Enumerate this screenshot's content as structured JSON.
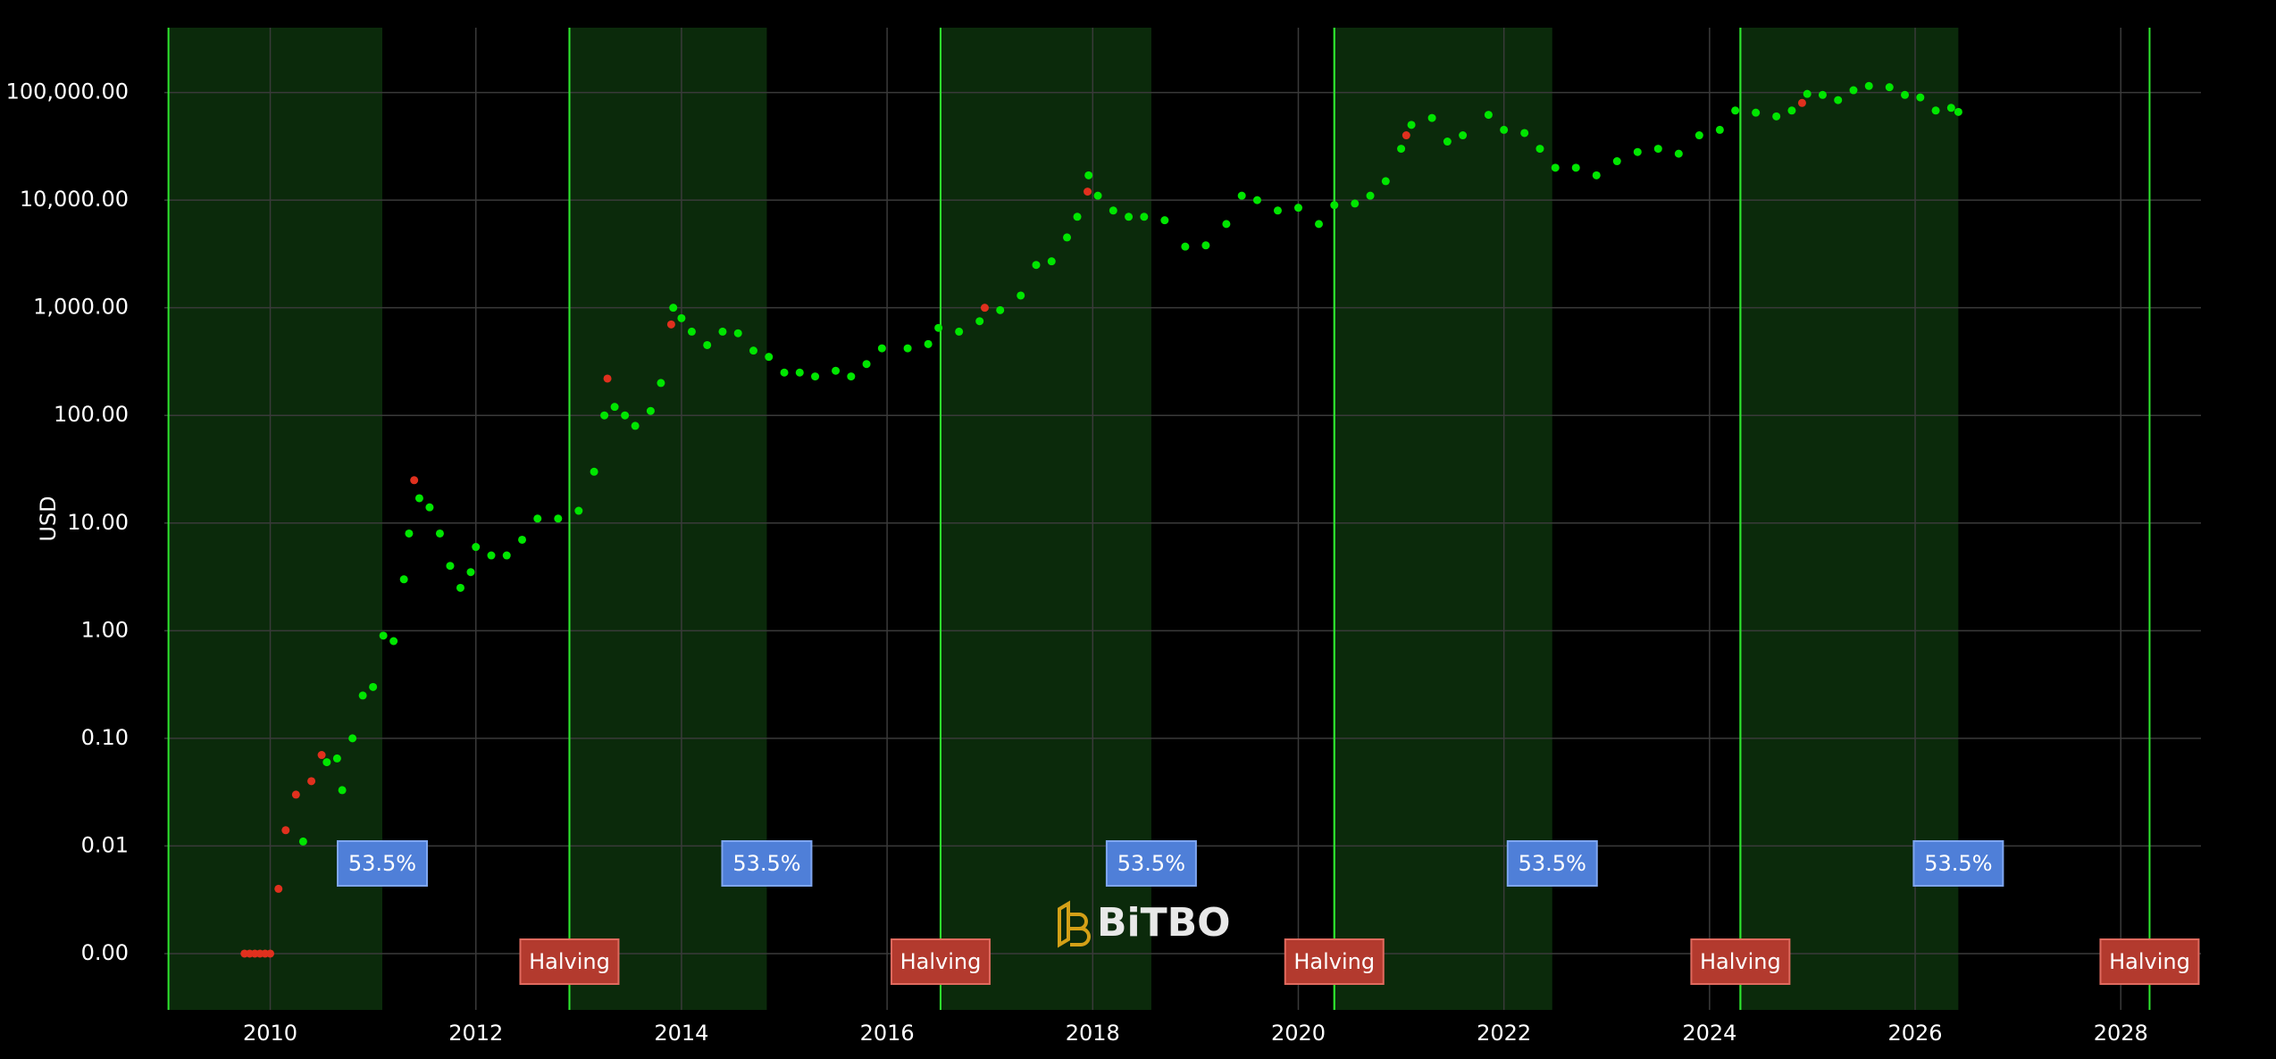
{
  "chart_data": {
    "type": "scatter",
    "y_label": "USD",
    "watermark": "BiTBO",
    "log_y": true,
    "grid": true,
    "xlim": [
      2008.97,
      2028.78
    ],
    "xticks": [
      2010,
      2012,
      2014,
      2016,
      2018,
      2020,
      2022,
      2024,
      2026,
      2028
    ],
    "ylim": [
      0.0003,
      400000
    ],
    "yticks": [
      {
        "value": 0.001,
        "label": "0.00"
      },
      {
        "value": 0.01,
        "label": "0.01"
      },
      {
        "value": 0.1,
        "label": "0.10"
      },
      {
        "value": 1,
        "label": "1.00"
      },
      {
        "value": 10,
        "label": "10.00"
      },
      {
        "value": 100,
        "label": "100.00"
      },
      {
        "value": 1000,
        "label": "1,000.00"
      },
      {
        "value": 10000,
        "label": "10,000.00"
      },
      {
        "value": 100000,
        "label": "100,000.00"
      }
    ],
    "cycles": [
      {
        "start": 2009.01,
        "end": 2011.09,
        "label": "53.5%"
      },
      {
        "start": 2012.91,
        "end": 2014.83,
        "label": "53.5%"
      },
      {
        "start": 2016.52,
        "end": 2018.57,
        "label": "53.5%"
      },
      {
        "start": 2020.35,
        "end": 2022.47,
        "label": "53.5%"
      },
      {
        "start": 2024.3,
        "end": 2026.42,
        "label": "53.5%"
      }
    ],
    "halvings": [
      {
        "x": 2012.91,
        "label": "Halving"
      },
      {
        "x": 2016.52,
        "label": "Halving"
      },
      {
        "x": 2020.35,
        "label": "Halving"
      },
      {
        "x": 2024.3,
        "label": "Halving"
      },
      {
        "x": 2028.28,
        "label": "Halving"
      }
    ],
    "series": [
      {
        "color": "#00e600",
        "x": [
          2010.32,
          2010.55,
          2010.65,
          2010.7,
          2010.8,
          2010.9,
          2011.0,
          2011.1,
          2011.2,
          2011.3,
          2011.35,
          2011.45,
          2011.55,
          2011.65,
          2011.75,
          2011.85,
          2011.95,
          2012.0,
          2012.15,
          2012.3,
          2012.45,
          2012.6,
          2012.8,
          2013.0,
          2013.15,
          2013.25,
          2013.35,
          2013.45,
          2013.55,
          2013.7,
          2013.8,
          2013.92,
          2014.0,
          2014.1,
          2014.25,
          2014.4,
          2014.55,
          2014.7,
          2014.85,
          2015.0,
          2015.15,
          2015.3,
          2015.5,
          2015.65,
          2015.8,
          2015.95,
          2016.2,
          2016.4,
          2016.5,
          2016.7,
          2016.9,
          2017.1,
          2017.3,
          2017.45,
          2017.6,
          2017.75,
          2017.85,
          2017.96,
          2018.05,
          2018.2,
          2018.35,
          2018.5,
          2018.7,
          2018.9,
          2019.1,
          2019.3,
          2019.45,
          2019.6,
          2019.8,
          2020.0,
          2020.2,
          2020.35,
          2020.55,
          2020.7,
          2020.85,
          2021.0,
          2021.1,
          2021.3,
          2021.45,
          2021.6,
          2021.85,
          2022.0,
          2022.2,
          2022.35,
          2022.5,
          2022.7,
          2022.9,
          2023.1,
          2023.3,
          2023.5,
          2023.7,
          2023.9,
          2024.1,
          2024.25,
          2024.45,
          2024.65,
          2024.8,
          2024.95,
          2025.1,
          2025.25,
          2025.4,
          2025.55,
          2025.75,
          2025.9,
          2026.05,
          2026.2,
          2026.35,
          2026.42
        ],
        "values": [
          0.011,
          0.06,
          0.065,
          0.033,
          0.1,
          0.25,
          0.3,
          0.9,
          0.8,
          3,
          8,
          17,
          14,
          8,
          4,
          2.5,
          3.5,
          6,
          5,
          5,
          7,
          11,
          11,
          13,
          30,
          100,
          120,
          100,
          80,
          110,
          200,
          1000,
          800,
          600,
          450,
          600,
          580,
          400,
          350,
          250,
          250,
          230,
          260,
          230,
          300,
          420,
          420,
          460,
          650,
          600,
          750,
          950,
          1300,
          2500,
          2700,
          4500,
          7000,
          17000,
          11000,
          8000,
          7000,
          7000,
          6500,
          3700,
          3800,
          6000,
          11000,
          10000,
          8000,
          8500,
          6000,
          9000,
          9300,
          11000,
          15000,
          30000,
          50000,
          58000,
          35000,
          40000,
          62000,
          45000,
          42000,
          30000,
          20000,
          20000,
          17000,
          23000,
          28000,
          30000,
          27000,
          40000,
          45000,
          68000,
          65000,
          60000,
          68000,
          97000,
          95000,
          85000,
          105000,
          115000,
          112000,
          95000,
          90000,
          68000,
          72000,
          66000
        ]
      },
      {
        "color": "#e0301e",
        "x": [
          2009.75,
          2009.8,
          2009.85,
          2009.9,
          2009.95,
          2010.0,
          2010.08,
          2010.15,
          2010.25,
          2010.4,
          2010.5,
          2011.4,
          2013.28,
          2013.9,
          2016.95,
          2017.95,
          2021.05,
          2024.9
        ],
        "values": [
          0.001,
          0.001,
          0.001,
          0.001,
          0.001,
          0.001,
          0.004,
          0.014,
          0.03,
          0.04,
          0.07,
          25,
          220,
          700,
          1000,
          12000,
          40000,
          80000
        ]
      }
    ]
  }
}
